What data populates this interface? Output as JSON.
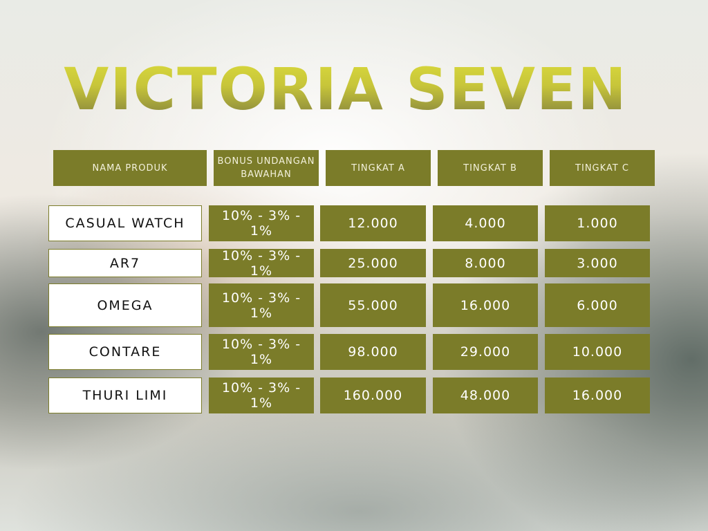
{
  "title": "VICTORIA SEVEN",
  "colors": {
    "accent": "#7b7c29",
    "title_top": "#dcdc3c",
    "title_bottom": "#7c7a3e"
  },
  "headers": [
    "NAMA PRODUK",
    "BONUS UNDANGAN BAWAHAN",
    "TINGKAT A",
    "TINGKAT B",
    "TINGKAT C"
  ],
  "rows": [
    {
      "name": "CASUAL WATCH",
      "bonus": "10% - 3% - 1%",
      "a": "12.000",
      "b": "4.000",
      "c": "1.000"
    },
    {
      "name": "AR7",
      "bonus": "10% - 3% - 1%",
      "a": "25.000",
      "b": "8.000",
      "c": "3.000"
    },
    {
      "name": "OMEGA",
      "bonus": "10% - 3% - 1%",
      "a": "55.000",
      "b": "16.000",
      "c": "6.000"
    },
    {
      "name": "CONTARE",
      "bonus": "10% - 3% - 1%",
      "a": "98.000",
      "b": "29.000",
      "c": "10.000"
    },
    {
      "name": "THURI LIMI",
      "bonus": "10% - 3% - 1%",
      "a": "160.000",
      "b": "48.000",
      "c": "16.000"
    }
  ]
}
